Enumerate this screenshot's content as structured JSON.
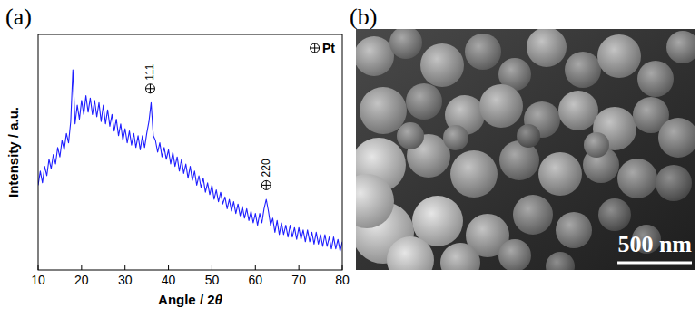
{
  "chart_data": {
    "type": "line",
    "panel_label": "(a)",
    "x_label": "Angle / 2θ",
    "y_label": "Intensity / a.u.",
    "color": "#1f1fff",
    "xlim": [
      10,
      80
    ],
    "xticks": [
      10,
      20,
      30,
      40,
      50,
      60,
      70,
      80
    ],
    "ylim": [
      0,
      100
    ],
    "yticks": [],
    "tick_labels": "x",
    "grid": false,
    "legend": "upper right",
    "legend_label": "Pt",
    "annotations": [
      {
        "text": "111",
        "x": 35.8,
        "y": 77
      },
      {
        "text": "220",
        "x": 62.5,
        "y": 36
      }
    ],
    "x": [
      10,
      10.5,
      11,
      11.5,
      12,
      12.5,
      13,
      13.5,
      14,
      14.5,
      15,
      15.5,
      16,
      16.5,
      17,
      17.5,
      18,
      18.5,
      19,
      19.5,
      20,
      20.5,
      21,
      21.5,
      22,
      22.5,
      23,
      23.5,
      24,
      24.5,
      25,
      25.5,
      26,
      26.5,
      27,
      27.5,
      28,
      28.5,
      29,
      29.5,
      30,
      30.5,
      31,
      31.5,
      32,
      32.5,
      33,
      33.5,
      34,
      34.5,
      35,
      35.5,
      36,
      36.5,
      37,
      37.5,
      38,
      38.5,
      39,
      39.5,
      40,
      40.5,
      41,
      41.5,
      42,
      42.5,
      43,
      43.5,
      44,
      44.5,
      45,
      45.5,
      46,
      46.5,
      47,
      47.5,
      48,
      48.5,
      49,
      49.5,
      50,
      50.5,
      51,
      51.5,
      52,
      52.5,
      53,
      53.5,
      54,
      54.5,
      55,
      55.5,
      56,
      56.5,
      57,
      57.5,
      58,
      58.5,
      59,
      59.5,
      60,
      60.5,
      61,
      61.5,
      62,
      62.5,
      63,
      63.5,
      64,
      64.5,
      65,
      65.5,
      66,
      66.5,
      67,
      67.5,
      68,
      68.5,
      69,
      69.5,
      70,
      70.5,
      71,
      71.5,
      72,
      72.5,
      73,
      73.5,
      74,
      74.5,
      75,
      75.5,
      76,
      76.5,
      77,
      77.5,
      78,
      78.5,
      79,
      79.5,
      80
    ],
    "values": [
      36,
      42,
      37,
      44,
      40,
      47,
      43,
      49,
      45,
      52,
      48,
      55,
      51,
      58,
      54,
      63,
      85,
      62,
      70,
      64,
      72,
      66,
      74,
      67,
      73,
      66,
      72,
      65,
      71,
      63,
      70,
      62,
      68,
      61,
      66,
      59,
      64,
      57,
      62,
      55,
      60,
      54,
      59,
      53,
      58,
      52,
      57,
      51,
      57,
      52,
      58,
      63,
      71,
      57,
      55,
      50,
      54,
      48,
      52,
      47,
      51,
      45,
      50,
      44,
      48,
      42,
      47,
      41,
      45,
      39,
      44,
      38,
      42,
      36,
      40,
      35,
      39,
      33,
      37,
      32,
      36,
      30,
      34,
      29,
      33,
      28,
      31,
      26,
      30,
      25,
      29,
      24,
      28,
      23,
      27,
      22,
      26,
      21,
      25,
      20,
      24,
      19,
      24,
      20,
      26,
      30,
      25,
      19,
      22,
      16,
      21,
      15,
      20,
      15,
      19,
      14,
      19,
      14,
      18,
      13,
      18,
      13,
      17,
      12,
      17,
      12,
      16,
      11,
      16,
      11,
      15,
      10,
      15,
      10,
      14,
      9,
      14,
      9,
      13,
      8,
      12
    ]
  },
  "image": {
    "panel_label": "(b)",
    "scale_bar": "500 nm"
  }
}
